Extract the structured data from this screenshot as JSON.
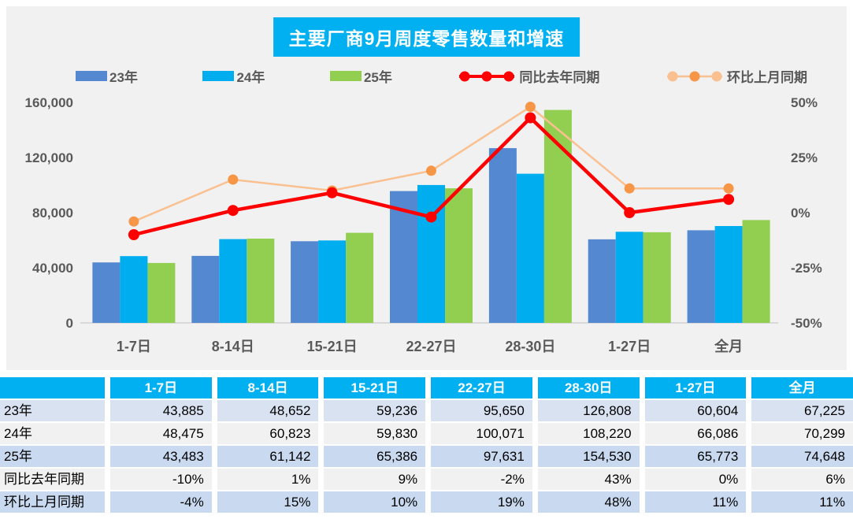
{
  "chart_data": {
    "type": "bar+line",
    "title": "主要厂商9月周度零售数量和增速",
    "title_bg_color": "#00B0F0",
    "plot_bg_color": "#F1F1F2",
    "grid": false,
    "legend_position": "top",
    "categories": [
      "1-7日",
      "8-14日",
      "15-21日",
      "22-27日",
      "28-30日",
      "1-27日",
      "全月"
    ],
    "series": [
      {
        "name": "23年",
        "type": "bar",
        "color": "#5488D1",
        "values": [
          43885,
          48652,
          59236,
          95650,
          126808,
          60604,
          67225
        ]
      },
      {
        "name": "24年",
        "type": "bar",
        "color": "#00AEEF",
        "values": [
          48475,
          60823,
          59830,
          100071,
          108220,
          66086,
          70299
        ]
      },
      {
        "name": "25年",
        "type": "bar",
        "color": "#92CE50",
        "values": [
          43483,
          61142,
          65386,
          97631,
          154530,
          65773,
          74648
        ]
      },
      {
        "name": "同比去年同期",
        "type": "line",
        "axis": "right",
        "color": "#FF0000",
        "marker_color": "#FF0000",
        "values": [
          -10,
          1,
          9,
          -2,
          43,
          0,
          6
        ]
      },
      {
        "name": "环比上月同期",
        "type": "line",
        "axis": "right",
        "color": "#FAC090",
        "marker_color": "#F79646",
        "values": [
          -4,
          15,
          10,
          19,
          48,
          11,
          11
        ]
      }
    ],
    "left_axis": {
      "min": 0,
      "max": 160000,
      "tick_labels": [
        "0",
        "40,000",
        "80,000",
        "120,000",
        "160,000"
      ]
    },
    "right_axis": {
      "min": -50,
      "max": 50,
      "tick_labels": [
        "-50%",
        "-25%",
        "0%",
        "25%",
        "50%"
      ]
    },
    "axis_text_color": "#595959",
    "baseline_color": "#D9D9D9"
  },
  "table": {
    "columns": [
      "1-7日",
      "8-14日",
      "15-21日",
      "22-27日",
      "28-30日",
      "1-27日",
      "全月"
    ],
    "rows": [
      {
        "label": "23年",
        "values": [
          "43,885",
          "48,652",
          "59,236",
          "95,650",
          "126,808",
          "60,604",
          "67,225"
        ]
      },
      {
        "label": "24年",
        "values": [
          "48,475",
          "60,823",
          "59,830",
          "100,071",
          "108,220",
          "66,086",
          "70,299"
        ]
      },
      {
        "label": "25年",
        "values": [
          "43,483",
          "61,142",
          "65,386",
          "97,631",
          "154,530",
          "65,773",
          "74,648"
        ]
      },
      {
        "label": "同比去年同期",
        "values": [
          "-10%",
          "1%",
          "9%",
          "-2%",
          "43%",
          "0%",
          "6%"
        ]
      },
      {
        "label": "环比上月同期",
        "values": [
          "-4%",
          "15%",
          "10%",
          "19%",
          "48%",
          "11%",
          "11%"
        ]
      }
    ]
  }
}
